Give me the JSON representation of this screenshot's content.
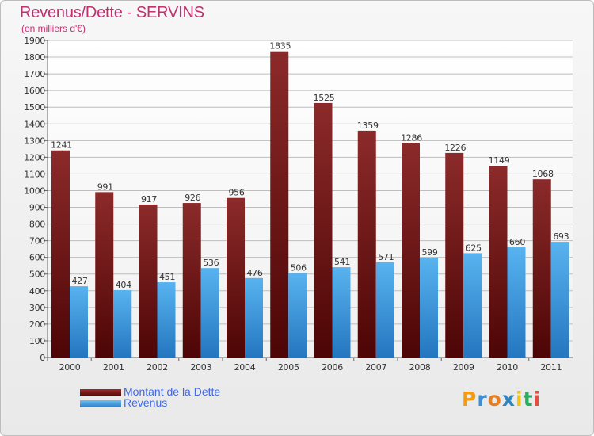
{
  "chart_data": {
    "type": "bar",
    "title": "Revenus/Dette - SERVINS",
    "subtitle": "(en milliers d'€)",
    "xlabel": "",
    "ylabel": "",
    "categories": [
      "2000",
      "2001",
      "2002",
      "2003",
      "2004",
      "2005",
      "2006",
      "2007",
      "2008",
      "2009",
      "2010",
      "2011"
    ],
    "series": [
      {
        "name": "Montant de la Dette",
        "color": "#7a1a1a",
        "values": [
          1241,
          991,
          917,
          926,
          956,
          1835,
          1525,
          1359,
          1286,
          1226,
          1149,
          1068
        ]
      },
      {
        "name": "Revenus",
        "color": "#3d9be0",
        "values": [
          427,
          404,
          451,
          536,
          476,
          506,
          541,
          571,
          599,
          625,
          660,
          693
        ]
      }
    ],
    "ylim": [
      0,
      1900
    ],
    "yticks": [
      0,
      100,
      200,
      300,
      400,
      500,
      600,
      700,
      800,
      900,
      1000,
      1100,
      1200,
      1300,
      1400,
      1500,
      1600,
      1700,
      1800,
      1900
    ],
    "grid": true,
    "legend_position": "bottom-left"
  },
  "logo": {
    "letters": [
      "P",
      "r",
      "o",
      "x",
      "i",
      "t",
      "i"
    ],
    "colors": [
      "#f39c12",
      "#3c8fd6",
      "#e67e22",
      "#2e86c1",
      "#f1c40f",
      "#27ae60",
      "#e74c3c"
    ]
  }
}
